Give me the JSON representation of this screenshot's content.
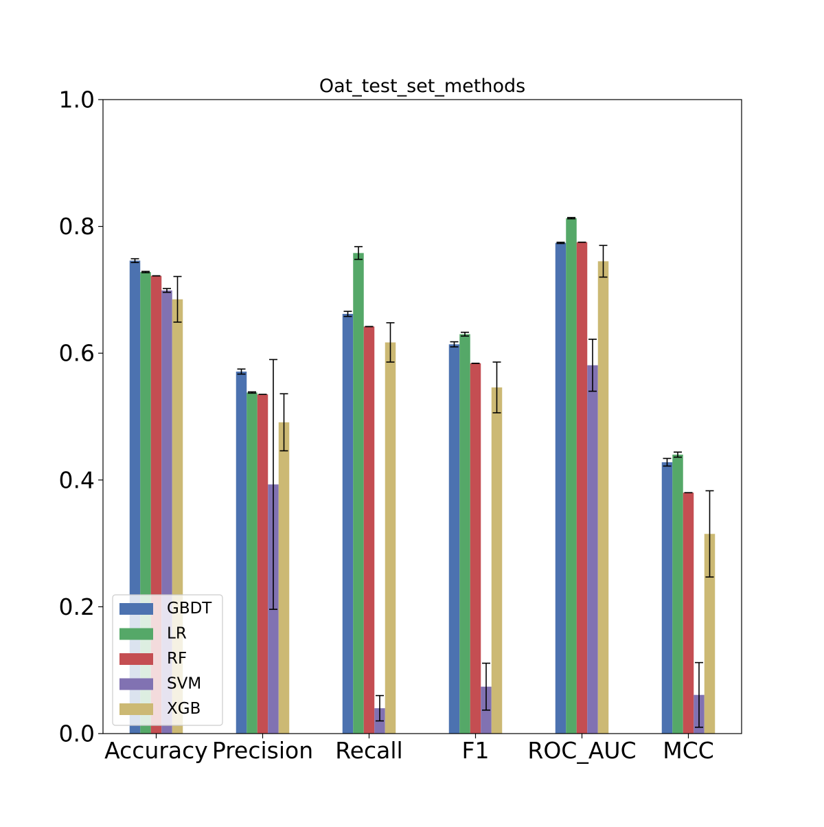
{
  "chart_data": {
    "type": "bar",
    "title": "Oat_test_set_methods",
    "xlabel": "",
    "ylabel": "",
    "ylim": [
      0,
      1
    ],
    "grid": false,
    "legend_position": "lower-left",
    "yticks": [
      "0.0",
      "0.2",
      "0.4",
      "0.6",
      "0.8",
      "1.0"
    ],
    "categories": [
      "Accuracy",
      "Precision",
      "Recall",
      "F1",
      "ROC_AUC",
      "MCC"
    ],
    "series": [
      {
        "name": "GBDT",
        "color": "#4c72b0",
        "values": [
          0.746,
          0.571,
          0.662,
          0.614,
          0.774,
          0.428
        ],
        "errors": [
          0.003,
          0.004,
          0.004,
          0.004,
          0.001,
          0.006
        ]
      },
      {
        "name": "LR",
        "color": "#55a868",
        "values": [
          0.728,
          0.538,
          0.758,
          0.63,
          0.813,
          0.44
        ],
        "errors": [
          0.001,
          0.001,
          0.01,
          0.003,
          0.001,
          0.004
        ]
      },
      {
        "name": "RF",
        "color": "#c44e52",
        "values": [
          0.722,
          0.535,
          0.642,
          0.584,
          0.775,
          0.38
        ],
        "errors": [
          0.0,
          0.0,
          0.0,
          0.0,
          0.0,
          0.0
        ]
      },
      {
        "name": "SVM",
        "color": "#8172b2",
        "values": [
          0.699,
          0.393,
          0.04,
          0.074,
          0.581,
          0.061
        ],
        "errors": [
          0.003,
          0.197,
          0.02,
          0.037,
          0.041,
          0.051
        ]
      },
      {
        "name": "XGB",
        "color": "#ccb974",
        "values": [
          0.685,
          0.491,
          0.617,
          0.546,
          0.745,
          0.315
        ],
        "errors": [
          0.036,
          0.045,
          0.031,
          0.04,
          0.025,
          0.068
        ]
      }
    ]
  }
}
